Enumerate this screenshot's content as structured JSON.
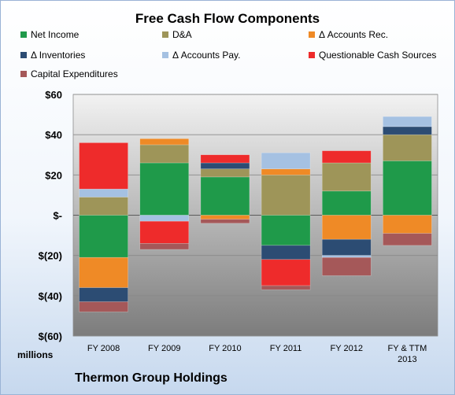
{
  "chart_data": {
    "type": "bar",
    "stacked": true,
    "title": "Free Cash Flow Components",
    "categories": [
      "FY 2008",
      "FY 2009",
      "FY 2010",
      "FY 2011",
      "FY 2012",
      "FY & TTM 2013"
    ],
    "ylim": [
      -60,
      60
    ],
    "yticks": [
      60,
      40,
      20,
      0,
      -20,
      -40,
      -60
    ],
    "ytick_labels": [
      "$60",
      "$40",
      "$20",
      "$-",
      "$(20)",
      "$(40)",
      "$(60)"
    ],
    "units_label": "millions",
    "grid": true,
    "legend_position": "top",
    "series": [
      {
        "name": "Net Income",
        "color": "#1f9a4a",
        "values": [
          -21,
          26,
          19,
          -15,
          12,
          27
        ]
      },
      {
        "name": "D&A",
        "color": "#9e9559",
        "values": [
          9,
          9,
          4,
          20,
          14,
          13
        ]
      },
      {
        "name": "Δ Accounts Rec.",
        "color": "#ef8a26",
        "values": [
          -15,
          3,
          -2,
          3,
          -12,
          -9
        ]
      },
      {
        "name": "Δ Inventories",
        "color": "#2c4c73",
        "values": [
          -7,
          0,
          3,
          -7,
          -8,
          4
        ]
      },
      {
        "name": "Δ Accounts Pay.",
        "color": "#a5c1e2",
        "values": [
          4,
          -3,
          0,
          8,
          -1,
          5
        ]
      },
      {
        "name": "Questionable Cash Sources",
        "color": "#ee2b2b",
        "values": [
          23,
          -11,
          4,
          -13,
          6,
          0
        ]
      },
      {
        "name": "Capital Expenditures",
        "color": "#a55859",
        "values": [
          -5,
          -3,
          -2,
          -2,
          -9,
          -6
        ]
      }
    ]
  },
  "footer": {
    "company": "Thermon Group Holdings"
  }
}
